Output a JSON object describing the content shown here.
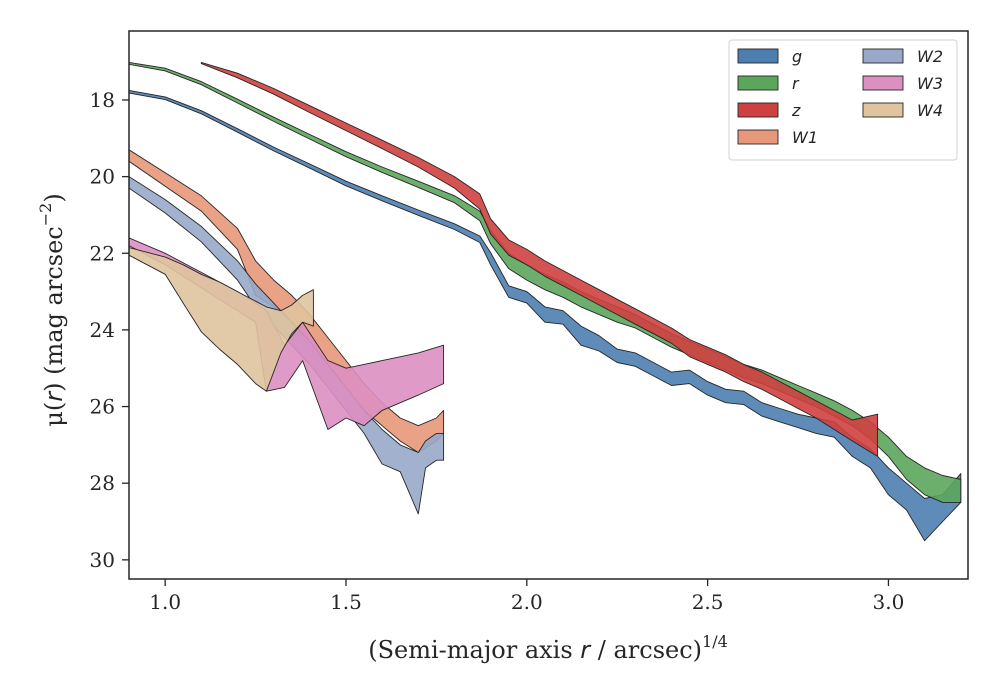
{
  "chart_data": {
    "type": "area",
    "xlabel": "(Semi-major axis r / arcsec)^1/4",
    "ylabel": "μ(r) (mag arcsec^-2)",
    "xlabel_parts": {
      "pre": "(Semi-major axis ",
      "var": "r",
      "post": " / arcsec)",
      "sup": "1/4"
    },
    "ylabel_parts": {
      "mu": "μ(",
      "var": "r",
      "post": ") (mag arcsec",
      "sup": "−2",
      "close": ")"
    },
    "xlim": [
      0.9,
      3.22
    ],
    "ylim": [
      30.5,
      16.2
    ],
    "y_inverted": true,
    "xticks": [
      1.0,
      1.5,
      2.0,
      2.5,
      3.0
    ],
    "xtick_labels": [
      "1.0",
      "1.5",
      "2.0",
      "2.5",
      "3.0"
    ],
    "yticks": [
      18,
      20,
      22,
      24,
      26,
      28,
      30
    ],
    "ytick_labels": [
      "18",
      "20",
      "22",
      "24",
      "26",
      "28",
      "30"
    ],
    "grid": false,
    "legend": {
      "position": "top-right",
      "columns": 2
    },
    "series": [
      {
        "name": "g",
        "color": "#4c7eb0",
        "points": [
          [
            0.9,
            17.75,
            17.82
          ],
          [
            1.0,
            17.92,
            17.99
          ],
          [
            1.1,
            18.28,
            18.36
          ],
          [
            1.2,
            18.75,
            18.84
          ],
          [
            1.3,
            19.23,
            19.33
          ],
          [
            1.4,
            19.67,
            19.78
          ],
          [
            1.5,
            20.12,
            20.24
          ],
          [
            1.6,
            20.5,
            20.63
          ],
          [
            1.7,
            20.87,
            21.01
          ],
          [
            1.8,
            21.23,
            21.38
          ],
          [
            1.87,
            21.55,
            21.72
          ],
          [
            1.9,
            21.98,
            22.3
          ],
          [
            1.95,
            22.85,
            23.15
          ],
          [
            2.0,
            23.0,
            23.3
          ],
          [
            2.05,
            23.4,
            23.8
          ],
          [
            2.1,
            23.5,
            23.85
          ],
          [
            2.15,
            23.9,
            24.4
          ],
          [
            2.2,
            24.15,
            24.55
          ],
          [
            2.25,
            24.5,
            24.85
          ],
          [
            2.3,
            24.6,
            24.95
          ],
          [
            2.35,
            24.85,
            25.2
          ],
          [
            2.4,
            25.1,
            25.45
          ],
          [
            2.45,
            25.05,
            25.4
          ],
          [
            2.5,
            25.35,
            25.7
          ],
          [
            2.55,
            25.55,
            25.9
          ],
          [
            2.6,
            25.6,
            25.95
          ],
          [
            2.65,
            25.9,
            26.25
          ],
          [
            2.7,
            26.05,
            26.4
          ],
          [
            2.75,
            26.2,
            26.55
          ],
          [
            2.8,
            26.3,
            26.7
          ],
          [
            2.85,
            26.4,
            26.8
          ],
          [
            2.9,
            26.8,
            27.3
          ],
          [
            2.95,
            27.1,
            27.6
          ],
          [
            3.0,
            27.6,
            28.3
          ],
          [
            3.05,
            28.0,
            28.7
          ],
          [
            3.1,
            28.4,
            29.5
          ],
          [
            3.15,
            28.3,
            29.0
          ],
          [
            3.2,
            27.75,
            28.5
          ]
        ]
      },
      {
        "name": "r",
        "color": "#5ca65c",
        "points": [
          [
            0.9,
            17.02,
            17.07
          ],
          [
            1.0,
            17.17,
            17.24
          ],
          [
            1.1,
            17.52,
            17.6
          ],
          [
            1.2,
            17.98,
            18.08
          ],
          [
            1.3,
            18.45,
            18.56
          ],
          [
            1.4,
            18.9,
            19.02
          ],
          [
            1.5,
            19.35,
            19.48
          ],
          [
            1.6,
            19.75,
            19.89
          ],
          [
            1.7,
            20.12,
            20.28
          ],
          [
            1.8,
            20.5,
            20.68
          ],
          [
            1.87,
            20.9,
            21.15
          ],
          [
            1.9,
            21.4,
            21.75
          ],
          [
            1.95,
            22.0,
            22.4
          ],
          [
            2.0,
            22.3,
            22.7
          ],
          [
            2.05,
            22.55,
            22.95
          ],
          [
            2.1,
            22.75,
            23.15
          ],
          [
            2.15,
            23.0,
            23.4
          ],
          [
            2.2,
            23.2,
            23.6
          ],
          [
            2.25,
            23.4,
            23.8
          ],
          [
            2.3,
            23.6,
            23.95
          ],
          [
            2.35,
            23.85,
            24.2
          ],
          [
            2.4,
            24.1,
            24.45
          ],
          [
            2.45,
            24.3,
            24.65
          ],
          [
            2.5,
            24.5,
            24.85
          ],
          [
            2.55,
            24.7,
            25.05
          ],
          [
            2.6,
            24.9,
            25.25
          ],
          [
            2.65,
            25.05,
            25.4
          ],
          [
            2.7,
            25.25,
            25.6
          ],
          [
            2.75,
            25.45,
            25.8
          ],
          [
            2.8,
            25.65,
            26.0
          ],
          [
            2.85,
            25.85,
            26.25
          ],
          [
            2.9,
            26.1,
            26.5
          ],
          [
            2.95,
            26.4,
            26.85
          ],
          [
            3.0,
            26.8,
            27.3
          ],
          [
            3.05,
            27.3,
            27.9
          ],
          [
            3.1,
            27.6,
            28.3
          ],
          [
            3.15,
            27.8,
            28.5
          ],
          [
            3.2,
            27.9,
            28.5
          ]
        ]
      },
      {
        "name": "z",
        "color": "#cf4040",
        "points": [
          [
            1.1,
            17.02,
            17.05
          ],
          [
            1.2,
            17.3,
            17.42
          ],
          [
            1.3,
            17.7,
            17.85
          ],
          [
            1.4,
            18.15,
            18.33
          ],
          [
            1.5,
            18.6,
            18.8
          ],
          [
            1.6,
            19.05,
            19.27
          ],
          [
            1.7,
            19.5,
            19.75
          ],
          [
            1.8,
            20.0,
            20.3
          ],
          [
            1.87,
            20.45,
            20.85
          ],
          [
            1.9,
            21.1,
            21.5
          ],
          [
            1.95,
            21.65,
            22.05
          ],
          [
            2.0,
            21.9,
            22.3
          ],
          [
            2.05,
            22.2,
            22.6
          ],
          [
            2.1,
            22.45,
            22.85
          ],
          [
            2.15,
            22.7,
            23.1
          ],
          [
            2.2,
            22.95,
            23.35
          ],
          [
            2.25,
            23.2,
            23.6
          ],
          [
            2.3,
            23.45,
            23.85
          ],
          [
            2.35,
            23.7,
            24.1
          ],
          [
            2.4,
            23.95,
            24.35
          ],
          [
            2.45,
            24.25,
            24.7
          ],
          [
            2.5,
            24.45,
            24.9
          ],
          [
            2.55,
            24.65,
            25.1
          ],
          [
            2.6,
            24.9,
            25.35
          ],
          [
            2.65,
            25.1,
            25.55
          ],
          [
            2.7,
            25.35,
            25.8
          ],
          [
            2.75,
            25.6,
            26.05
          ],
          [
            2.8,
            25.85,
            26.3
          ],
          [
            2.85,
            26.1,
            26.6
          ],
          [
            2.9,
            26.35,
            26.9
          ],
          [
            2.97,
            26.2,
            27.3
          ]
        ]
      },
      {
        "name": "W1",
        "color": "#e8987a",
        "points": [
          [
            0.9,
            19.3,
            19.6
          ],
          [
            1.0,
            19.9,
            20.25
          ],
          [
            1.1,
            20.5,
            20.9
          ],
          [
            1.2,
            21.35,
            21.9
          ],
          [
            1.25,
            22.2,
            23.1
          ],
          [
            1.3,
            22.7,
            23.4
          ],
          [
            1.35,
            23.1,
            23.8
          ],
          [
            1.4,
            23.6,
            24.5
          ],
          [
            1.45,
            24.2,
            24.9
          ],
          [
            1.5,
            24.8,
            25.5
          ],
          [
            1.55,
            25.4,
            26.1
          ],
          [
            1.6,
            25.9,
            26.5
          ],
          [
            1.65,
            26.3,
            26.9
          ],
          [
            1.7,
            26.5,
            27.2
          ],
          [
            1.75,
            26.3,
            26.9
          ],
          [
            1.77,
            26.1,
            26.7
          ]
        ]
      },
      {
        "name": "W2",
        "color": "#97a8c9",
        "points": [
          [
            0.9,
            20.0,
            20.3
          ],
          [
            1.0,
            20.6,
            20.95
          ],
          [
            1.1,
            21.3,
            21.7
          ],
          [
            1.2,
            22.2,
            22.7
          ],
          [
            1.25,
            22.8,
            23.4
          ],
          [
            1.3,
            23.3,
            23.9
          ],
          [
            1.35,
            23.8,
            24.4
          ],
          [
            1.4,
            24.3,
            24.9
          ],
          [
            1.45,
            24.9,
            25.5
          ],
          [
            1.5,
            25.5,
            26.1
          ],
          [
            1.55,
            26.1,
            26.7
          ],
          [
            1.6,
            26.6,
            27.5
          ],
          [
            1.65,
            27.0,
            27.7
          ],
          [
            1.7,
            27.2,
            28.8
          ],
          [
            1.72,
            26.9,
            27.6
          ],
          [
            1.75,
            26.7,
            27.4
          ],
          [
            1.77,
            26.7,
            27.4
          ]
        ]
      },
      {
        "name": "W3",
        "color": "#dc8fc1",
        "points": [
          [
            0.9,
            21.6,
            21.8
          ],
          [
            1.0,
            22.0,
            22.3
          ],
          [
            1.1,
            22.5,
            22.9
          ],
          [
            1.2,
            23.0,
            23.5
          ],
          [
            1.25,
            23.3,
            23.8
          ],
          [
            1.28,
            23.5,
            25.6
          ],
          [
            1.33,
            24.4,
            25.5
          ],
          [
            1.38,
            23.8,
            24.8
          ],
          [
            1.45,
            24.8,
            26.6
          ],
          [
            1.5,
            25.0,
            26.3
          ],
          [
            1.55,
            24.9,
            26.5
          ],
          [
            1.6,
            24.8,
            26.1
          ],
          [
            1.7,
            24.6,
            25.7
          ],
          [
            1.77,
            24.4,
            25.4
          ]
        ]
      },
      {
        "name": "W4",
        "color": "#dfc49e",
        "points": [
          [
            0.9,
            21.85,
            22.05
          ],
          [
            1.0,
            22.1,
            22.55
          ],
          [
            1.05,
            22.3,
            23.3
          ],
          [
            1.1,
            22.55,
            24.05
          ],
          [
            1.15,
            22.75,
            24.5
          ],
          [
            1.2,
            23.0,
            24.9
          ],
          [
            1.25,
            23.25,
            25.4
          ],
          [
            1.28,
            23.4,
            25.6
          ],
          [
            1.32,
            23.5,
            24.6
          ],
          [
            1.35,
            23.35,
            24.1
          ],
          [
            1.38,
            23.1,
            23.8
          ],
          [
            1.41,
            22.95,
            23.9
          ]
        ]
      }
    ]
  }
}
